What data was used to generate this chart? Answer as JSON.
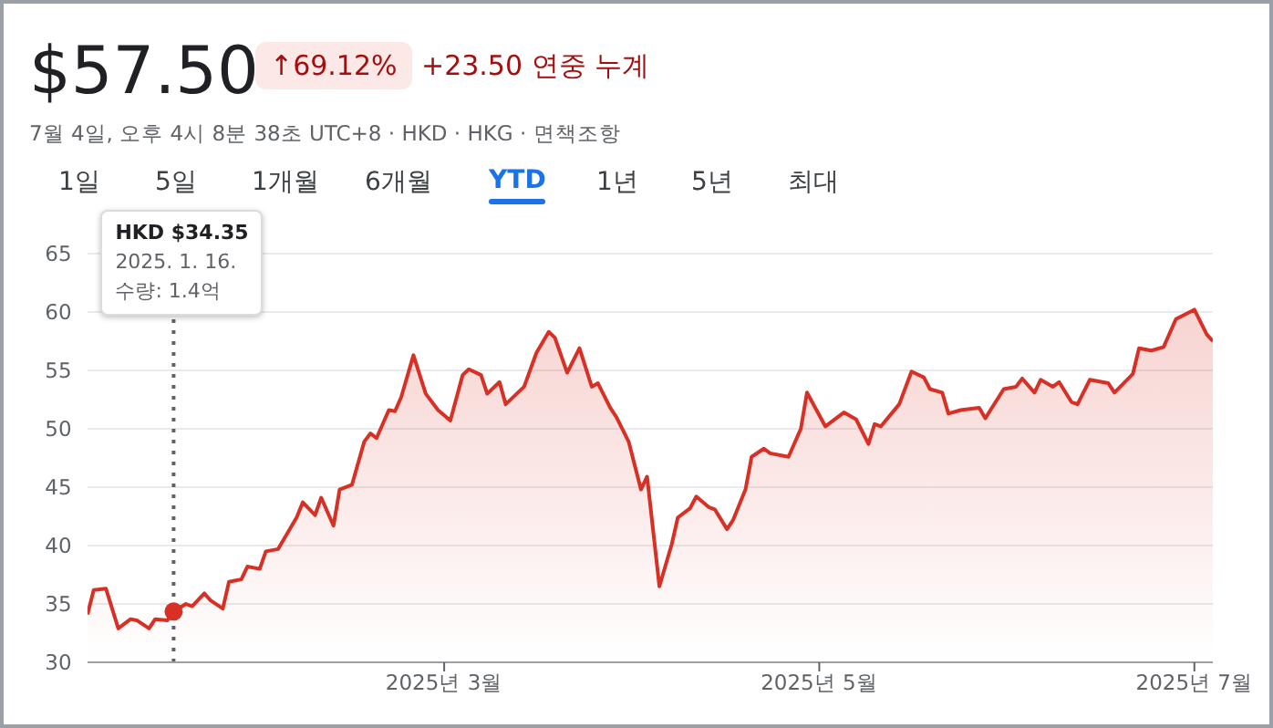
{
  "chart_data": {
    "type": "area",
    "title": "$57.50",
    "subtitle": "7월 4일, 오후 4시 8분 38초 UTC+8 · HKD · HKG · 면책조항",
    "annotations": [
      "↑69.12%",
      "+23.50 연중 누계",
      "1일",
      "5일",
      "1개월",
      "6개월",
      "YTD",
      "1년",
      "5년",
      "최대",
      "HKD $34.35\n2025. 1. 16.\n수량: 1.4억"
    ],
    "x": [
      "2025-01-02",
      "2025-01-03",
      "2025-01-05",
      "2025-01-07",
      "2025-01-09",
      "2025-01-10",
      "2025-01-12",
      "2025-01-13",
      "2025-01-15",
      "2025-01-16",
      "2025-01-18",
      "2025-01-19",
      "2025-01-21",
      "2025-01-22",
      "2025-01-24",
      "2025-01-25",
      "2025-01-27",
      "2025-01-28",
      "2025-01-30",
      "2025-01-31",
      "2025-02-02",
      "2025-02-03",
      "2025-02-05",
      "2025-02-06",
      "2025-02-08",
      "2025-02-09",
      "2025-02-11",
      "2025-02-12",
      "2025-02-14",
      "2025-02-16",
      "2025-02-17",
      "2025-02-18",
      "2025-02-20",
      "2025-02-21",
      "2025-02-22",
      "2025-02-24",
      "2025-02-26",
      "2025-02-28",
      "2025-03-02",
      "2025-03-04",
      "2025-03-05",
      "2025-03-07",
      "2025-03-08",
      "2025-03-10",
      "2025-03-11",
      "2025-03-14",
      "2025-03-16",
      "2025-03-18",
      "2025-03-19",
      "2025-03-21",
      "2025-03-23",
      "2025-03-25",
      "2025-03-26",
      "2025-03-28",
      "2025-03-29",
      "2025-03-31",
      "2025-04-02",
      "2025-04-03",
      "2025-04-05",
      "2025-04-07",
      "2025-04-08",
      "2025-04-10",
      "2025-04-11",
      "2025-04-13",
      "2025-04-14",
      "2025-04-16",
      "2025-04-17",
      "2025-04-19",
      "2025-04-20",
      "2025-04-22",
      "2025-04-23",
      "2025-04-26",
      "2025-04-28",
      "2025-04-29",
      "2025-05-02",
      "2025-05-05",
      "2025-05-07",
      "2025-05-09",
      "2025-05-10",
      "2025-05-11",
      "2025-05-14",
      "2025-05-16",
      "2025-05-18",
      "2025-05-19",
      "2025-05-21",
      "2025-05-22",
      "2025-05-24",
      "2025-05-27",
      "2025-05-28",
      "2025-05-31",
      "2025-06-02",
      "2025-06-03",
      "2025-06-05",
      "2025-06-06",
      "2025-06-08",
      "2025-06-09",
      "2025-06-11",
      "2025-06-12",
      "2025-06-14",
      "2025-06-17",
      "2025-06-18",
      "2025-06-21",
      "2025-06-22",
      "2025-06-24",
      "2025-06-26",
      "2025-06-28",
      "2025-07-01",
      "2025-07-03",
      "2025-07-04"
    ],
    "series": [
      {
        "color": "#d93025",
        "values": [
          34.1,
          36.2,
          36.3,
          32.9,
          33.7,
          33.6,
          32.9,
          33.7,
          33.6,
          34.35,
          35.0,
          34.8,
          35.9,
          35.3,
          34.6,
          36.9,
          37.1,
          38.2,
          38.0,
          39.5,
          39.7,
          40.6,
          42.4,
          43.7,
          42.6,
          44.1,
          41.7,
          44.8,
          45.2,
          48.9,
          49.6,
          49.2,
          51.6,
          51.5,
          52.7,
          56.3,
          53.0,
          51.6,
          50.7,
          54.6,
          55.1,
          54.6,
          53.0,
          54.0,
          52.1,
          53.6,
          56.5,
          58.3,
          57.8,
          54.8,
          56.9,
          53.6,
          53.9,
          51.8,
          51.0,
          48.9,
          44.8,
          45.9,
          36.5,
          40.1,
          42.4,
          43.2,
          44.2,
          43.3,
          43.1,
          41.4,
          42.2,
          44.8,
          47.6,
          48.3,
          47.9,
          47.6,
          50.0,
          53.1,
          50.2,
          51.4,
          50.8,
          48.7,
          50.4,
          50.2,
          52.1,
          54.9,
          54.4,
          53.4,
          53.1,
          51.3,
          51.6,
          51.8,
          50.9,
          53.4,
          53.6,
          54.3,
          53.1,
          54.2,
          53.6,
          54.0,
          52.3,
          52.1,
          54.2,
          53.9,
          53.1,
          54.7,
          56.9,
          56.7,
          57.0,
          59.4,
          60.2,
          58.1,
          57.5
        ]
      }
    ],
    "xlim": [
      "2025-01-02",
      "2025-07-04"
    ],
    "xticks": [
      {
        "value": "2025-03-01",
        "label": "2025년 3월"
      },
      {
        "value": "2025-05-01",
        "label": "2025년 5월"
      },
      {
        "value": "2025-07-01",
        "label": "2025년 7월"
      }
    ],
    "ylim": [
      30,
      65
    ],
    "yticks": [
      30,
      35,
      40,
      45,
      50,
      55,
      60,
      65
    ],
    "ref_lines": [
      {
        "axis": "x",
        "value": "2025-01-16",
        "color": "#5f6368",
        "line_style": "dotted"
      }
    ],
    "grid": "y",
    "legend": false,
    "marker": "none",
    "line_style": "solid"
  }
}
